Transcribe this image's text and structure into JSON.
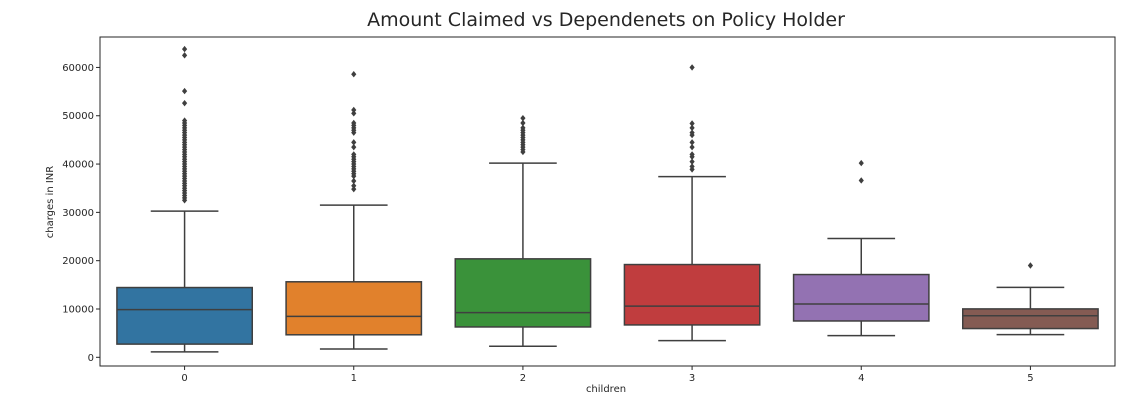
{
  "chart_data": {
    "type": "box",
    "title": "Amount Claimed vs Dependenets on Policy Holder",
    "xlabel": "children",
    "ylabel": "charges in INR",
    "categories": [
      "0",
      "1",
      "2",
      "3",
      "4",
      "5"
    ],
    "ylim": [
      -1800,
      66300
    ],
    "yticks": [
      0,
      10000,
      20000,
      30000,
      40000,
      50000,
      60000
    ],
    "ytick_labels": [
      "0",
      "10000",
      "20000",
      "30000",
      "40000",
      "50000",
      "60000"
    ],
    "grid": false,
    "colors": [
      "#3274a1",
      "#e1812c",
      "#3a923a",
      "#c03d3e",
      "#9372b2",
      "#845b53"
    ],
    "boxes": [
      {
        "category": "0",
        "whisker_low": 1120,
        "q1": 2730,
        "median": 9860,
        "q3": 14440,
        "whisker_high": 30260,
        "outliers": [
          32500,
          33000,
          33500,
          34000,
          34500,
          35000,
          35500,
          36000,
          36500,
          37000,
          37500,
          38000,
          38500,
          39000,
          39500,
          40000,
          40500,
          41000,
          41500,
          42000,
          42500,
          43000,
          43500,
          44000,
          44500,
          45000,
          45500,
          46000,
          46500,
          47000,
          47500,
          48000,
          48500,
          49000,
          52600,
          55100,
          62500,
          63800
        ]
      },
      {
        "category": "1",
        "whisker_low": 1710,
        "q1": 4660,
        "median": 8480,
        "q3": 15630,
        "whisker_high": 31500,
        "outliers": [
          34800,
          35500,
          36500,
          37500,
          38000,
          38500,
          39000,
          39500,
          40000,
          40500,
          41000,
          41500,
          42000,
          43500,
          44500,
          46500,
          47000,
          47500,
          48000,
          48500,
          50500,
          51200,
          58600
        ]
      },
      {
        "category": "2",
        "whisker_low": 2300,
        "q1": 6280,
        "median": 9260,
        "q3": 20380,
        "whisker_high": 40200,
        "outliers": [
          42500,
          43000,
          43500,
          44000,
          44500,
          45000,
          45500,
          46000,
          46500,
          47000,
          47500,
          48500,
          49500
        ]
      },
      {
        "category": "3",
        "whisker_low": 3440,
        "q1": 6700,
        "median": 10600,
        "q3": 19200,
        "whisker_high": 37400,
        "outliers": [
          38900,
          39500,
          40500,
          41500,
          42000,
          43500,
          44500,
          46000,
          46500,
          47500,
          48400,
          60000
        ]
      },
      {
        "category": "4",
        "whisker_low": 4500,
        "q1": 7520,
        "median": 11030,
        "q3": 17130,
        "whisker_high": 24600,
        "outliers": [
          36600,
          40200
        ]
      },
      {
        "category": "5",
        "whisker_low": 4690,
        "q1": 5950,
        "median": 8590,
        "q3": 10020,
        "whisker_high": 14480,
        "outliers": [
          19000
        ]
      }
    ]
  }
}
